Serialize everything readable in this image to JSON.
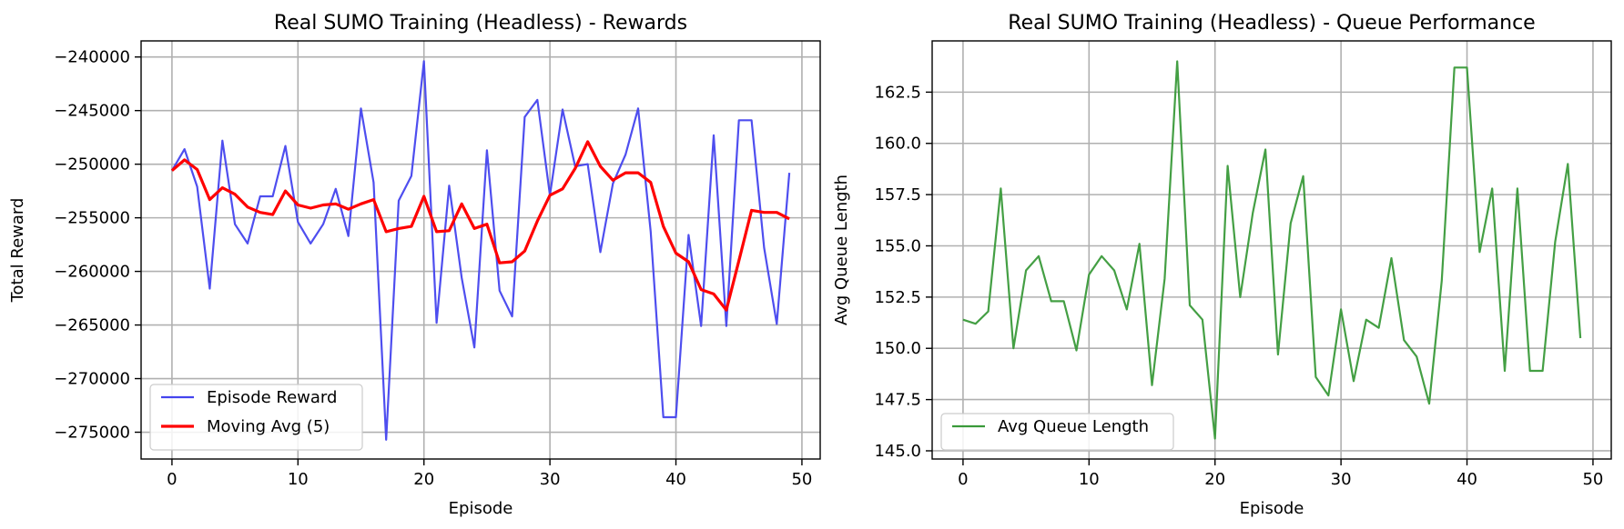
{
  "chart_data": [
    {
      "type": "line",
      "title": "Real SUMO Training (Headless) - Rewards",
      "xlabel": "Episode",
      "ylabel": "Total Reward",
      "xlim": [
        -2.45,
        51.45
      ],
      "ylim": [
        -277500,
        -238500
      ],
      "xticks": [
        0,
        10,
        20,
        30,
        40,
        50
      ],
      "xtick_labels": [
        "0",
        "10",
        "20",
        "30",
        "40",
        "50"
      ],
      "yticks": [
        -275000,
        -270000,
        -265000,
        -260000,
        -255000,
        -250000,
        -245000,
        -240000
      ],
      "ytick_labels": [
        "−275000",
        "−270000",
        "−265000",
        "−260000",
        "−255000",
        "−250000",
        "−245000",
        "−240000"
      ],
      "grid": true,
      "legend_position": "lower-left",
      "x": [
        0,
        1,
        2,
        3,
        4,
        5,
        6,
        7,
        8,
        9,
        10,
        11,
        12,
        13,
        14,
        15,
        16,
        17,
        18,
        19,
        20,
        21,
        22,
        23,
        24,
        25,
        26,
        27,
        28,
        29,
        30,
        31,
        32,
        33,
        34,
        35,
        36,
        37,
        38,
        39,
        40,
        41,
        42,
        43,
        44,
        45,
        46,
        47,
        48,
        49
      ],
      "series": [
        {
          "name": "Episode Reward",
          "color": "#4444ee",
          "values": [
            -250600,
            -248600,
            -252100,
            -261600,
            -247800,
            -255600,
            -257400,
            -253000,
            -253000,
            -248300,
            -255400,
            -257400,
            -255600,
            -252300,
            -256700,
            -244800,
            -251700,
            -275700,
            -253400,
            -251100,
            -240400,
            -264800,
            -252000,
            -260600,
            -267100,
            -248700,
            -261800,
            -264200,
            -245600,
            -244000,
            -252900,
            -244900,
            -250200,
            -250000,
            -258200,
            -251800,
            -249100,
            -244800,
            -256300,
            -273600,
            -273600,
            -256600,
            -265100,
            -247300,
            -265100,
            -245900,
            -245900,
            -257800,
            -264900,
            -250800
          ]
        },
        {
          "name": "Moving Avg (5)",
          "color": "#ff0000",
          "values": [
            -250600,
            -249600,
            -250500,
            -253300,
            -252200,
            -252800,
            -254000,
            -254500,
            -254700,
            -252500,
            -253800,
            -254100,
            -253800,
            -253700,
            -254200,
            -253700,
            -253300,
            -256300,
            -256000,
            -255800,
            -253000,
            -256300,
            -256200,
            -253700,
            -256000,
            -255600,
            -259200,
            -259100,
            -258100,
            -255300,
            -252900,
            -252300,
            -250400,
            -247900,
            -250200,
            -251500,
            -250800,
            -250800,
            -251700,
            -255800,
            -258300,
            -259100,
            -261700,
            -262100,
            -263600,
            -259000,
            -254300,
            -254500,
            -254500,
            -255100
          ]
        }
      ]
    },
    {
      "type": "line",
      "title": "Real SUMO Training (Headless) - Queue Performance",
      "xlabel": "Episode",
      "ylabel": "Avg Queue Length",
      "xlim": [
        -2.45,
        51.45
      ],
      "ylim": [
        144.6,
        165.0
      ],
      "xticks": [
        0,
        10,
        20,
        30,
        40,
        50
      ],
      "xtick_labels": [
        "0",
        "10",
        "20",
        "30",
        "40",
        "50"
      ],
      "yticks": [
        145.0,
        147.5,
        150.0,
        152.5,
        155.0,
        157.5,
        160.0,
        162.5
      ],
      "ytick_labels": [
        "145.0",
        "147.5",
        "150.0",
        "152.5",
        "155.0",
        "157.5",
        "160.0",
        "162.5"
      ],
      "grid": true,
      "legend_position": "lower-left",
      "x": [
        0,
        1,
        2,
        3,
        4,
        5,
        6,
        7,
        8,
        9,
        10,
        11,
        12,
        13,
        14,
        15,
        16,
        17,
        18,
        19,
        20,
        21,
        22,
        23,
        24,
        25,
        26,
        27,
        28,
        29,
        30,
        31,
        32,
        33,
        34,
        35,
        36,
        37,
        38,
        39,
        40,
        41,
        42,
        43,
        44,
        45,
        46,
        47,
        48,
        49
      ],
      "series": [
        {
          "name": "Avg Queue Length",
          "color": "#3a9a3a",
          "values": [
            151.4,
            151.2,
            151.8,
            157.8,
            150.0,
            153.8,
            154.5,
            152.3,
            152.3,
            149.9,
            153.6,
            154.5,
            153.8,
            151.9,
            155.1,
            148.2,
            153.4,
            164.0,
            152.1,
            151.4,
            145.6,
            158.9,
            152.5,
            156.6,
            159.7,
            149.7,
            156.1,
            158.4,
            148.6,
            147.7,
            151.9,
            148.4,
            151.4,
            151.0,
            154.4,
            150.4,
            149.6,
            147.3,
            153.3,
            163.7,
            163.7,
            154.7,
            157.8,
            148.9,
            157.8,
            148.9,
            148.9,
            155.2,
            159.0,
            150.5
          ]
        }
      ]
    }
  ]
}
